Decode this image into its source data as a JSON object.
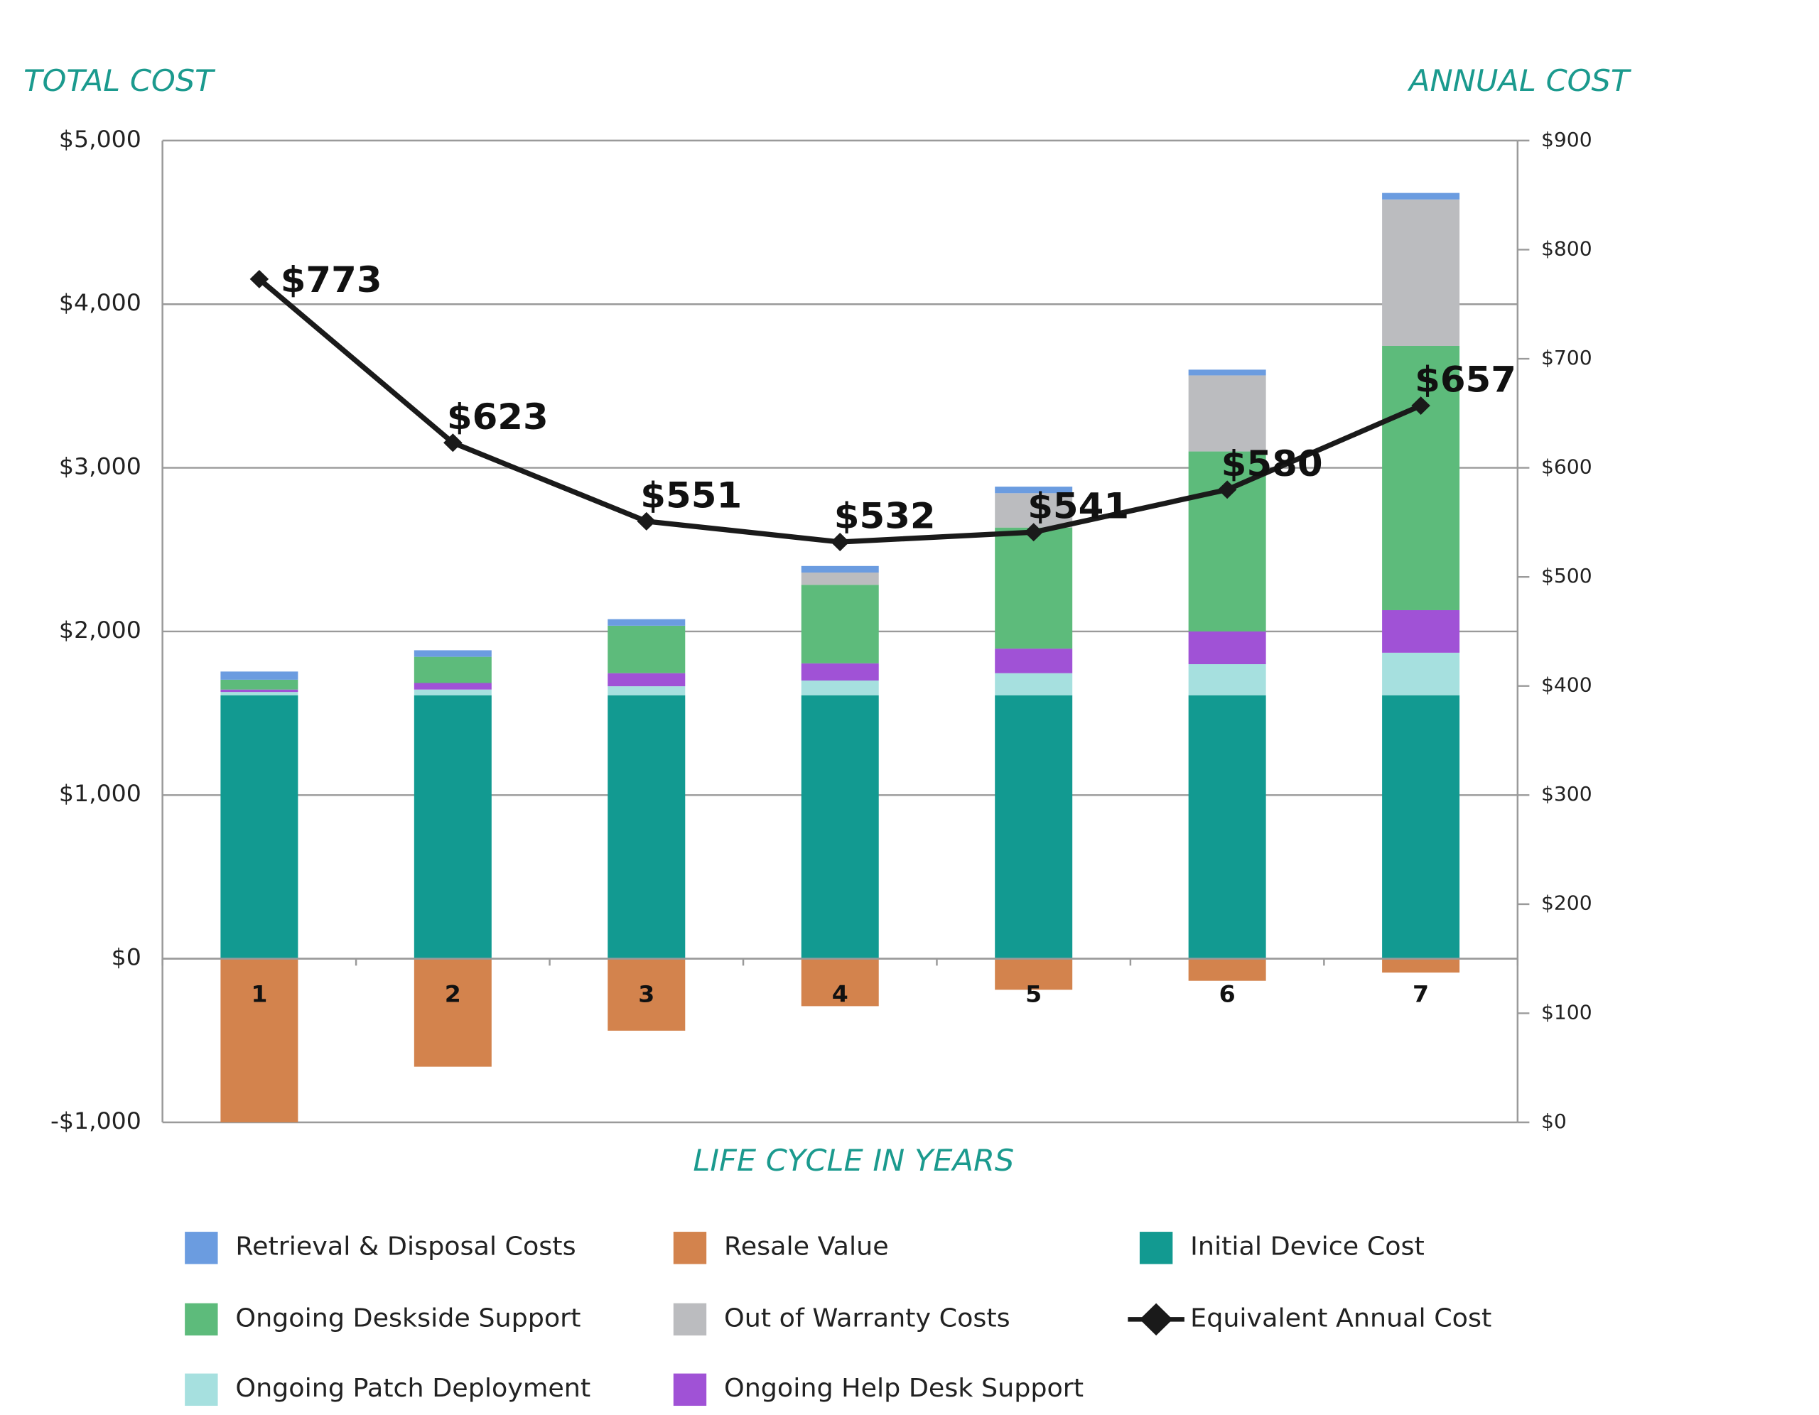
{
  "chart_data": {
    "type": "bar",
    "stacked": true,
    "title_left": "TOTAL COST",
    "title_right": "ANNUAL COST",
    "x_label": "LIFE CYCLE IN YEARS",
    "categories": [
      "1",
      "2",
      "3",
      "4",
      "5",
      "6",
      "7"
    ],
    "ylim": [
      -1000,
      5000
    ],
    "yticks": [
      {
        "value": -1000,
        "label": "-$1,000"
      },
      {
        "value": 0,
        "label": "$0"
      },
      {
        "value": 1000,
        "label": "$1,000"
      },
      {
        "value": 2000,
        "label": "$2,000"
      },
      {
        "value": 3000,
        "label": "$3,000"
      },
      {
        "value": 4000,
        "label": "$4,000"
      },
      {
        "value": 5000,
        "label": "$5,000"
      }
    ],
    "y2lim": [
      0,
      900
    ],
    "y2ticks": [
      {
        "value": 0,
        "label": "$0"
      },
      {
        "value": 100,
        "label": "$100"
      },
      {
        "value": 200,
        "label": "$200"
      },
      {
        "value": 300,
        "label": "$300"
      },
      {
        "value": 400,
        "label": "$400"
      },
      {
        "value": 500,
        "label": "$500"
      },
      {
        "value": 600,
        "label": "$600"
      },
      {
        "value": 700,
        "label": "$700"
      },
      {
        "value": 800,
        "label": "$800"
      },
      {
        "value": 900,
        "label": "$900"
      }
    ],
    "grid": true,
    "series": [
      {
        "name": "Initial Device Cost",
        "color": "#129a91",
        "values": [
          1610,
          1610,
          1610,
          1610,
          1610,
          1610,
          1610
        ]
      },
      {
        "name": "Ongoing Patch Deployment",
        "color": "#a6e0df",
        "values": [
          20,
          35,
          55,
          90,
          135,
          190,
          260
        ]
      },
      {
        "name": "Ongoing Help Desk Support",
        "color": "#a052d6",
        "values": [
          15,
          40,
          80,
          105,
          150,
          200,
          260
        ]
      },
      {
        "name": "Ongoing Deskside Support",
        "color": "#5dbb7b",
        "values": [
          60,
          160,
          290,
          480,
          740,
          1100,
          1615
        ]
      },
      {
        "name": "Out of Warranty Costs",
        "color": "#bbbcbf",
        "values": [
          0,
          0,
          0,
          75,
          210,
          465,
          895
        ]
      },
      {
        "name": "Retrieval & Disposal Costs",
        "color": "#6b9ce0",
        "values": [
          50,
          40,
          40,
          40,
          40,
          35,
          40
        ]
      },
      {
        "name": "Resale Value",
        "color": "#d3834d",
        "values": [
          -1000,
          -660,
          -440,
          -290,
          -190,
          -135,
          -85
        ]
      },
      {
        "name": "Equivalent Annual Cost",
        "type": "line",
        "axis": "y2",
        "color": "#1a1a1a",
        "values": [
          773,
          623,
          551,
          532,
          541,
          580,
          657
        ],
        "value_labels": [
          "$773",
          "$623",
          "$551",
          "$532",
          "$541",
          "$580",
          "$657"
        ]
      }
    ]
  }
}
